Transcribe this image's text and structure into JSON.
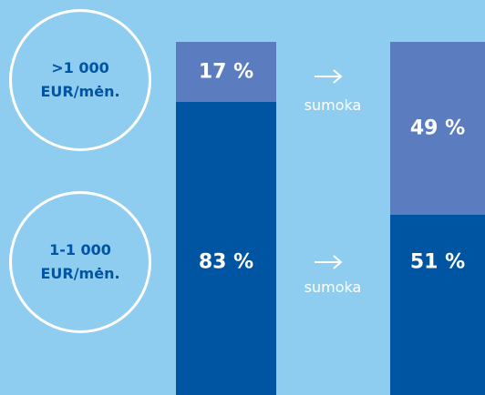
{
  "chart_data": {
    "type": "bar",
    "stacked": true,
    "categories": [
      null,
      null
    ],
    "series": [
      {
        "name": ">1 000 EUR/mėn.",
        "color": "#5b7dc0",
        "values": [
          17,
          49
        ],
        "value_labels": [
          "17 %",
          "49 %"
        ]
      },
      {
        "name": "1-1 000 EUR/mėn.",
        "color": "#0055a3",
        "values": [
          83,
          51
        ],
        "value_labels": [
          "83 %",
          "51 %"
        ]
      }
    ],
    "annotations": [
      "sumoka",
      "sumoka"
    ]
  }
}
